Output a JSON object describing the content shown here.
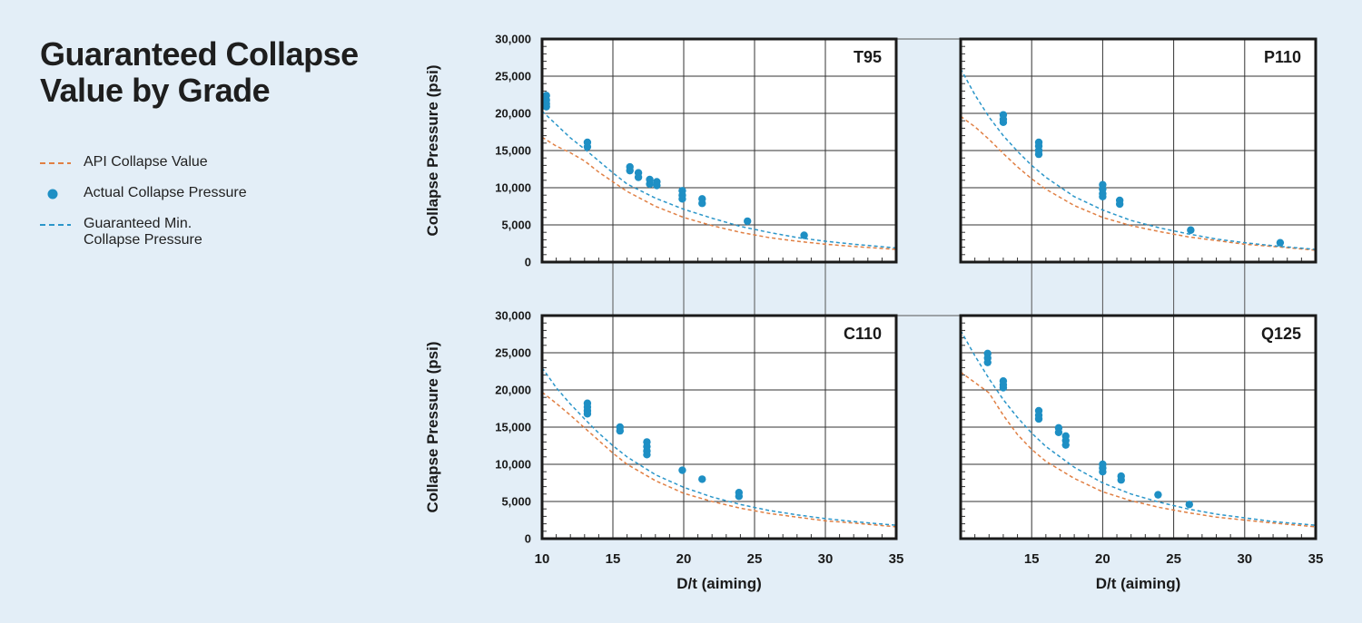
{
  "title_lines": [
    "Guaranteed Collapse",
    "Value by Grade"
  ],
  "legend": {
    "api": {
      "label": "API Collapse Value",
      "color": "#e07f43"
    },
    "actual": {
      "label": "Actual Collapse Pressure",
      "color": "#1e8fc4"
    },
    "guaranteed": {
      "label_lines": [
        "Guaranteed Min.",
        "Collapse Pressure"
      ],
      "color": "#2b96c9"
    }
  },
  "axes": {
    "ylabel": "Collapse Pressure (psi)",
    "xlabel": "D/t (aiming)",
    "yticks": [
      "30,000",
      "25,000",
      "20,000",
      "15,000",
      "10,000",
      "5,000",
      "0"
    ],
    "xticks": [
      "10",
      "15",
      "20",
      "25",
      "30",
      "35"
    ]
  },
  "chart_data": [
    {
      "type": "scatter",
      "title": "T95",
      "xlim": [
        10,
        35
      ],
      "ylim": [
        0,
        30000
      ],
      "series": [
        {
          "name": "API Collapse Value",
          "style": "dashed",
          "x": [
            10,
            11,
            12,
            13,
            14,
            15,
            16,
            18,
            20,
            22,
            24,
            26,
            28,
            30,
            32,
            35
          ],
          "y": [
            16800,
            15600,
            14700,
            13600,
            12100,
            10800,
            9500,
            7500,
            6000,
            4900,
            4000,
            3300,
            2800,
            2400,
            2100,
            1700
          ]
        },
        {
          "name": "Guaranteed Min. Collapse Pressure",
          "style": "dashed",
          "x": [
            10,
            11,
            12,
            13,
            14,
            15,
            16,
            18,
            20,
            22,
            24,
            26,
            28,
            30,
            32,
            35
          ],
          "y": [
            20300,
            18500,
            16700,
            15200,
            13600,
            12000,
            10500,
            8600,
            7100,
            5900,
            4800,
            4000,
            3300,
            2800,
            2400,
            1900
          ]
        },
        {
          "name": "Actual Collapse Pressure",
          "x": [
            10.3,
            10.3,
            10.3,
            10.3,
            13.2,
            13.2,
            16.2,
            16.2,
            16.8,
            16.8,
            17.6,
            17.6,
            18.1,
            18.1,
            19.9,
            19.9,
            19.9,
            21.3,
            21.3,
            24.5,
            28.5
          ],
          "y": [
            22400,
            21800,
            21300,
            20900,
            16100,
            15500,
            12800,
            12300,
            12000,
            11400,
            11100,
            10500,
            10800,
            10300,
            9600,
            9000,
            8500,
            8500,
            7900,
            5500,
            3600
          ]
        }
      ]
    },
    {
      "type": "scatter",
      "title": "P110",
      "xlim": [
        10,
        35
      ],
      "ylim": [
        0,
        30000
      ],
      "series": [
        {
          "name": "API Collapse Value",
          "style": "dashed",
          "x": [
            10,
            11,
            12,
            13,
            14,
            15,
            16,
            18,
            20,
            22,
            24,
            26,
            28,
            30,
            32,
            35
          ],
          "y": [
            19600,
            18200,
            16500,
            14600,
            12800,
            11200,
            9800,
            7600,
            6000,
            4900,
            4100,
            3400,
            2900,
            2400,
            2100,
            1600
          ]
        },
        {
          "name": "Guaranteed Min. Collapse Pressure",
          "style": "dashed",
          "x": [
            10,
            11,
            12,
            13,
            14,
            15,
            16,
            18,
            20,
            22,
            24,
            26,
            28,
            30,
            32,
            35
          ],
          "y": [
            26000,
            22500,
            19500,
            17000,
            14900,
            13000,
            11400,
            8800,
            7000,
            5600,
            4600,
            3800,
            3100,
            2600,
            2200,
            1700
          ]
        },
        {
          "name": "Actual Collapse Pressure",
          "x": [
            13,
            13,
            13,
            15.5,
            15.5,
            15.5,
            15.5,
            20,
            20,
            20,
            20,
            21.2,
            21.2,
            26.2,
            32.5
          ],
          "y": [
            19800,
            19200,
            18800,
            16100,
            15600,
            15000,
            14500,
            10400,
            9800,
            9200,
            8800,
            8300,
            7800,
            4300,
            2600
          ]
        }
      ]
    },
    {
      "type": "scatter",
      "title": "C110",
      "xlim": [
        10,
        35
      ],
      "ylim": [
        0,
        30000
      ],
      "series": [
        {
          "name": "API Collapse Value",
          "style": "dashed",
          "x": [
            10,
            11,
            12,
            13,
            14,
            15,
            16,
            18,
            20,
            22,
            24,
            26,
            28,
            30,
            32,
            35
          ],
          "y": [
            19700,
            18200,
            16600,
            14900,
            13200,
            11500,
            10000,
            7800,
            6100,
            5000,
            4100,
            3400,
            2900,
            2400,
            2100,
            1600
          ]
        },
        {
          "name": "Guaranteed Min. Collapse Pressure",
          "style": "dashed",
          "x": [
            10,
            11,
            12,
            13,
            14,
            15,
            16,
            18,
            20,
            22,
            24,
            26,
            28,
            30,
            32,
            35
          ],
          "y": [
            23000,
            20300,
            18100,
            16100,
            14200,
            12500,
            11000,
            8600,
            6900,
            5600,
            4600,
            3800,
            3200,
            2700,
            2300,
            1800
          ]
        },
        {
          "name": "Actual Collapse Pressure",
          "x": [
            13.2,
            13.2,
            13.2,
            13.2,
            15.5,
            15.5,
            17.4,
            17.4,
            17.4,
            17.4,
            19.9,
            21.3,
            23.9,
            23.9
          ],
          "y": [
            18200,
            17700,
            17200,
            16800,
            15000,
            14500,
            13000,
            12400,
            11800,
            11300,
            9200,
            8000,
            6200,
            5700
          ]
        }
      ]
    },
    {
      "type": "scatter",
      "title": "Q125",
      "xlim": [
        10,
        35
      ],
      "ylim": [
        0,
        30000
      ],
      "series": [
        {
          "name": "API Collapse Value",
          "style": "dashed",
          "x": [
            10,
            11,
            12,
            13,
            14,
            15,
            16,
            18,
            20,
            22,
            24,
            26,
            28,
            30,
            32,
            35
          ],
          "y": [
            22400,
            21000,
            19600,
            16600,
            14000,
            12000,
            10400,
            8100,
            6300,
            5100,
            4200,
            3500,
            2900,
            2500,
            2100,
            1600
          ]
        },
        {
          "name": "Guaranteed Min. Collapse Pressure",
          "style": "dashed",
          "x": [
            10,
            11,
            12,
            13,
            14,
            15,
            16,
            18,
            20,
            22,
            24,
            26,
            28,
            30,
            32,
            35
          ],
          "y": [
            28000,
            24600,
            21500,
            18700,
            16300,
            14200,
            12400,
            9600,
            7500,
            6000,
            4900,
            4000,
            3300,
            2800,
            2300,
            1800
          ]
        },
        {
          "name": "Actual Collapse Pressure",
          "x": [
            11.9,
            11.9,
            11.9,
            13,
            13,
            13,
            15.5,
            15.5,
            15.5,
            16.9,
            16.9,
            17.4,
            17.4,
            17.4,
            20,
            20,
            20,
            21.3,
            21.3,
            23.9,
            26.1
          ],
          "y": [
            24900,
            24300,
            23700,
            21200,
            20700,
            20300,
            17200,
            16600,
            16100,
            14900,
            14300,
            13800,
            13200,
            12600,
            10000,
            9500,
            9000,
            8400,
            7900,
            5900,
            4600
          ]
        }
      ]
    }
  ]
}
